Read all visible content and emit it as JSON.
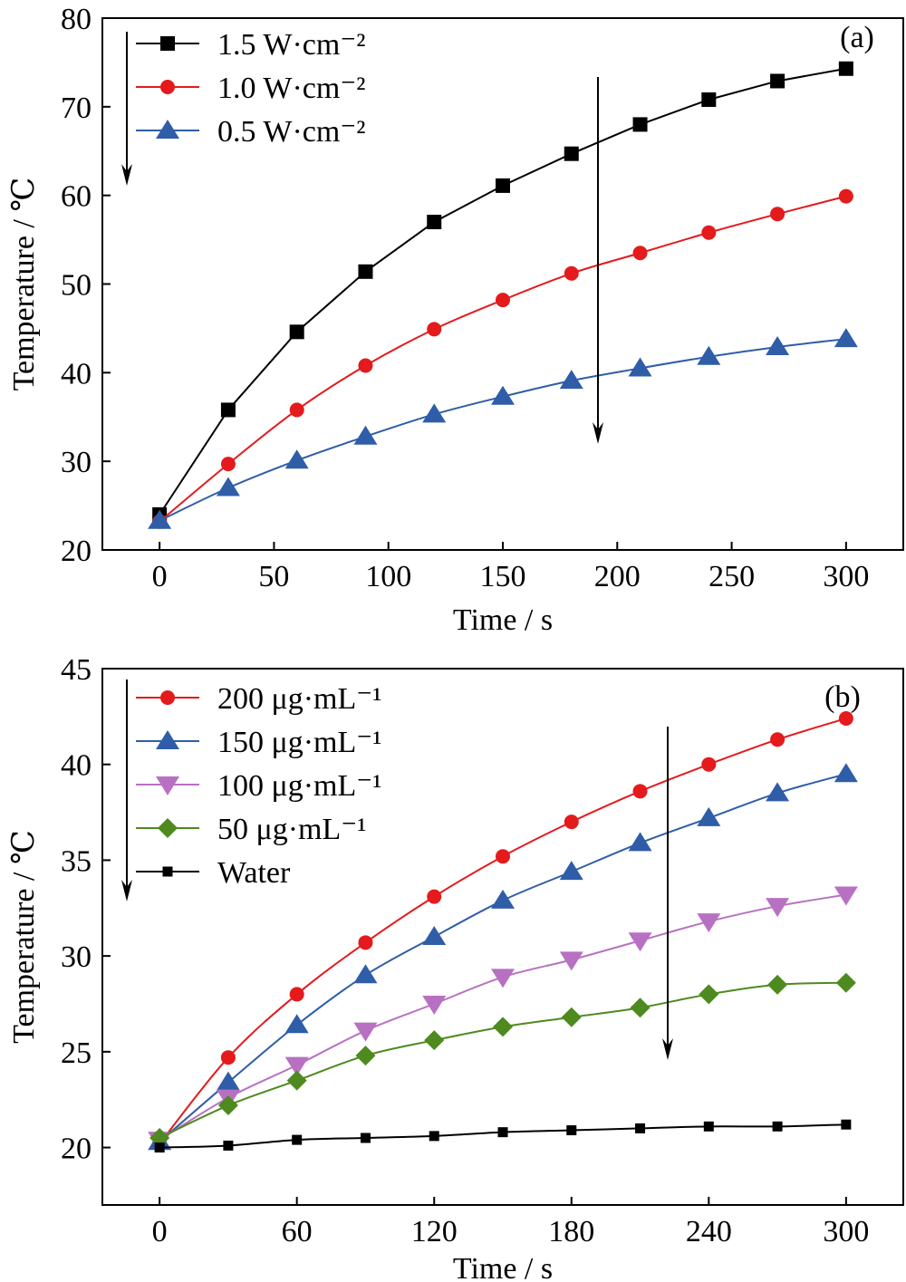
{
  "chart_data": [
    {
      "type": "line",
      "panel_label": "(a)",
      "xlabel": "Time / s",
      "ylabel": "Temperature / ℃",
      "xlim": [
        -25,
        325
      ],
      "ylim": [
        20,
        80
      ],
      "xticks": [
        0,
        50,
        100,
        150,
        200,
        250,
        300
      ],
      "yticks": [
        20,
        30,
        40,
        50,
        60,
        70,
        80
      ],
      "grid": false,
      "legend_position": "top-left",
      "x": [
        0,
        30,
        60,
        90,
        120,
        150,
        180,
        210,
        240,
        270,
        300
      ],
      "series": [
        {
          "name": "1.5 W·cm⁻²",
          "color": "#000000",
          "marker": "square",
          "values": [
            24.0,
            35.8,
            44.6,
            51.4,
            57.0,
            61.1,
            64.7,
            68.0,
            70.8,
            72.9,
            74.3
          ]
        },
        {
          "name": "1.0 W·cm⁻²",
          "color": "#e41a1c",
          "marker": "circle",
          "values": [
            23.2,
            29.7,
            35.8,
            40.8,
            44.9,
            48.2,
            51.2,
            53.5,
            55.8,
            57.9,
            59.9
          ]
        },
        {
          "name": "0.5 W·cm⁻²",
          "color": "#2f5da8",
          "marker": "triangle-up",
          "values": [
            23.3,
            27.0,
            30.1,
            32.8,
            35.3,
            37.3,
            39.1,
            40.5,
            41.8,
            42.9,
            43.8
          ]
        }
      ]
    },
    {
      "type": "line",
      "panel_label": "(b)",
      "xlabel": "Time / s",
      "ylabel": "Temperature / ℃",
      "xlim": [
        -25,
        325
      ],
      "ylim": [
        17,
        45
      ],
      "xticks": [
        0,
        60,
        120,
        180,
        240,
        300
      ],
      "yticks": [
        20,
        25,
        30,
        35,
        40,
        45
      ],
      "grid": false,
      "legend_position": "top-left",
      "x": [
        0,
        30,
        60,
        90,
        120,
        150,
        180,
        210,
        240,
        270,
        300
      ],
      "series": [
        {
          "name": "200 μg·mL⁻¹",
          "color": "#e41a1c",
          "marker": "circle",
          "values": [
            20.2,
            24.7,
            28.0,
            30.7,
            33.1,
            35.2,
            37.0,
            38.6,
            40.0,
            41.3,
            42.4
          ]
        },
        {
          "name": "150 μg·mL⁻¹",
          "color": "#2f5da8",
          "marker": "triangle-up",
          "values": [
            20.3,
            23.4,
            26.4,
            29.0,
            31.0,
            32.9,
            34.4,
            35.9,
            37.2,
            38.5,
            39.5
          ]
        },
        {
          "name": "100 μg·mL⁻¹",
          "color": "#b871c2",
          "marker": "triangle-down",
          "values": [
            20.4,
            22.6,
            24.3,
            26.1,
            27.5,
            28.9,
            29.8,
            30.8,
            31.8,
            32.6,
            33.2
          ]
        },
        {
          "name": "50 μg·mL⁻¹",
          "color": "#4e8a1f",
          "marker": "diamond",
          "values": [
            20.5,
            22.2,
            23.5,
            24.8,
            25.6,
            26.3,
            26.8,
            27.3,
            28.0,
            28.5,
            28.6
          ]
        },
        {
          "name": "Water",
          "color": "#000000",
          "marker": "small-square",
          "values": [
            20.0,
            20.1,
            20.4,
            20.5,
            20.6,
            20.8,
            20.9,
            21.0,
            21.1,
            21.1,
            21.2
          ]
        }
      ]
    }
  ]
}
